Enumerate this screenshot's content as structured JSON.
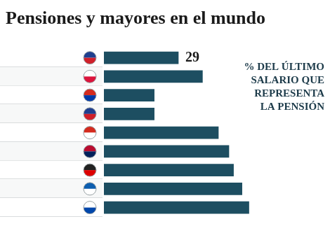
{
  "chart_data": {
    "type": "bar",
    "orientation": "horizontal",
    "title": "Pensiones y mayores en el mundo",
    "annotation": [
      "% DEL ÚLTIMO",
      "SALARIO QUE",
      "REPRESENTA",
      "LA PENSIÓN"
    ],
    "categories": [
      "Reino Unido",
      "Polonia",
      "Chile",
      "Australia",
      "Suiza",
      "Noruega",
      "Alemania",
      "Grecia",
      "Eslovenia"
    ],
    "values": [
      29,
      38.4,
      19.6,
      19.6,
      44.6,
      48.7,
      50.5,
      53.8,
      56.5
    ],
    "value_labels": [
      "29",
      null,
      null,
      null,
      null,
      null,
      null,
      null,
      null
    ],
    "color": "#1d4e61",
    "xlim": [
      0,
      87
    ],
    "grid": false,
    "tick_labels": "y"
  }
}
